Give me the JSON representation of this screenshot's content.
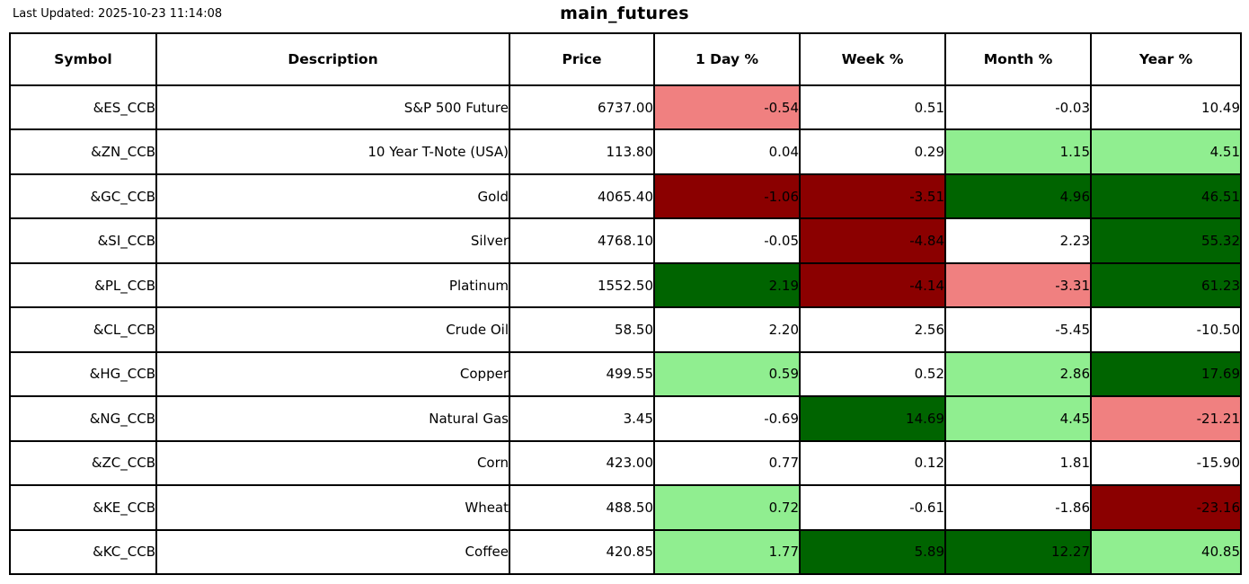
{
  "colors": {
    "neutral": "#ffffff",
    "up": "#90ee90",
    "strong_up": "#006400",
    "down": "#f08080",
    "strong_down": "#8b0000",
    "border": "#000000"
  },
  "chart_data": {
    "type": "table",
    "title": "main_futures",
    "last_updated": "Last Updated: 2025-10-23 11:14:08",
    "columns": [
      "Symbol",
      "Description",
      "Price",
      "1 Day %",
      "Week %",
      "Month %",
      "Year %"
    ],
    "rows": [
      {
        "symbol": "&ES_CCB",
        "description": "S&P 500 Future",
        "price": "6737.00",
        "cells": [
          {
            "v": "-0.54",
            "bg": "down"
          },
          {
            "v": "0.51",
            "bg": "neutral"
          },
          {
            "v": "-0.03",
            "bg": "neutral"
          },
          {
            "v": "10.49",
            "bg": "neutral"
          }
        ]
      },
      {
        "symbol": "&ZN_CCB",
        "description": "10 Year T-Note (USA)",
        "price": "113.80",
        "cells": [
          {
            "v": "0.04",
            "bg": "neutral"
          },
          {
            "v": "0.29",
            "bg": "neutral"
          },
          {
            "v": "1.15",
            "bg": "up"
          },
          {
            "v": "4.51",
            "bg": "up"
          }
        ]
      },
      {
        "symbol": "&GC_CCB",
        "description": "Gold",
        "price": "4065.40",
        "cells": [
          {
            "v": "-1.06",
            "bg": "strong_down"
          },
          {
            "v": "-3.51",
            "bg": "strong_down"
          },
          {
            "v": "4.96",
            "bg": "strong_up"
          },
          {
            "v": "46.51",
            "bg": "strong_up"
          }
        ]
      },
      {
        "symbol": "&SI_CCB",
        "description": "Silver",
        "price": "4768.10",
        "cells": [
          {
            "v": "-0.05",
            "bg": "neutral"
          },
          {
            "v": "-4.84",
            "bg": "strong_down"
          },
          {
            "v": "2.23",
            "bg": "neutral"
          },
          {
            "v": "55.32",
            "bg": "strong_up"
          }
        ]
      },
      {
        "symbol": "&PL_CCB",
        "description": "Platinum",
        "price": "1552.50",
        "cells": [
          {
            "v": "2.19",
            "bg": "strong_up"
          },
          {
            "v": "-4.14",
            "bg": "strong_down"
          },
          {
            "v": "-3.31",
            "bg": "down"
          },
          {
            "v": "61.23",
            "bg": "strong_up"
          }
        ]
      },
      {
        "symbol": "&CL_CCB",
        "description": "Crude Oil",
        "price": "58.50",
        "cells": [
          {
            "v": "2.20",
            "bg": "neutral"
          },
          {
            "v": "2.56",
            "bg": "neutral"
          },
          {
            "v": "-5.45",
            "bg": "neutral"
          },
          {
            "v": "-10.50",
            "bg": "neutral"
          }
        ]
      },
      {
        "symbol": "&HG_CCB",
        "description": "Copper",
        "price": "499.55",
        "cells": [
          {
            "v": "0.59",
            "bg": "up"
          },
          {
            "v": "0.52",
            "bg": "neutral"
          },
          {
            "v": "2.86",
            "bg": "up"
          },
          {
            "v": "17.69",
            "bg": "strong_up"
          }
        ]
      },
      {
        "symbol": "&NG_CCB",
        "description": "Natural Gas",
        "price": "3.45",
        "cells": [
          {
            "v": "-0.69",
            "bg": "neutral"
          },
          {
            "v": "14.69",
            "bg": "strong_up"
          },
          {
            "v": "4.45",
            "bg": "up"
          },
          {
            "v": "-21.21",
            "bg": "down"
          }
        ]
      },
      {
        "symbol": "&ZC_CCB",
        "description": "Corn",
        "price": "423.00",
        "cells": [
          {
            "v": "0.77",
            "bg": "neutral"
          },
          {
            "v": "0.12",
            "bg": "neutral"
          },
          {
            "v": "1.81",
            "bg": "neutral"
          },
          {
            "v": "-15.90",
            "bg": "neutral"
          }
        ]
      },
      {
        "symbol": "&KE_CCB",
        "description": "Wheat",
        "price": "488.50",
        "cells": [
          {
            "v": "0.72",
            "bg": "up"
          },
          {
            "v": "-0.61",
            "bg": "neutral"
          },
          {
            "v": "-1.86",
            "bg": "neutral"
          },
          {
            "v": "-23.16",
            "bg": "strong_down"
          }
        ]
      },
      {
        "symbol": "&KC_CCB",
        "description": "Coffee",
        "price": "420.85",
        "cells": [
          {
            "v": "1.77",
            "bg": "up"
          },
          {
            "v": "5.89",
            "bg": "strong_up"
          },
          {
            "v": "12.27",
            "bg": "strong_up"
          },
          {
            "v": "40.85",
            "bg": "up"
          }
        ]
      }
    ]
  }
}
